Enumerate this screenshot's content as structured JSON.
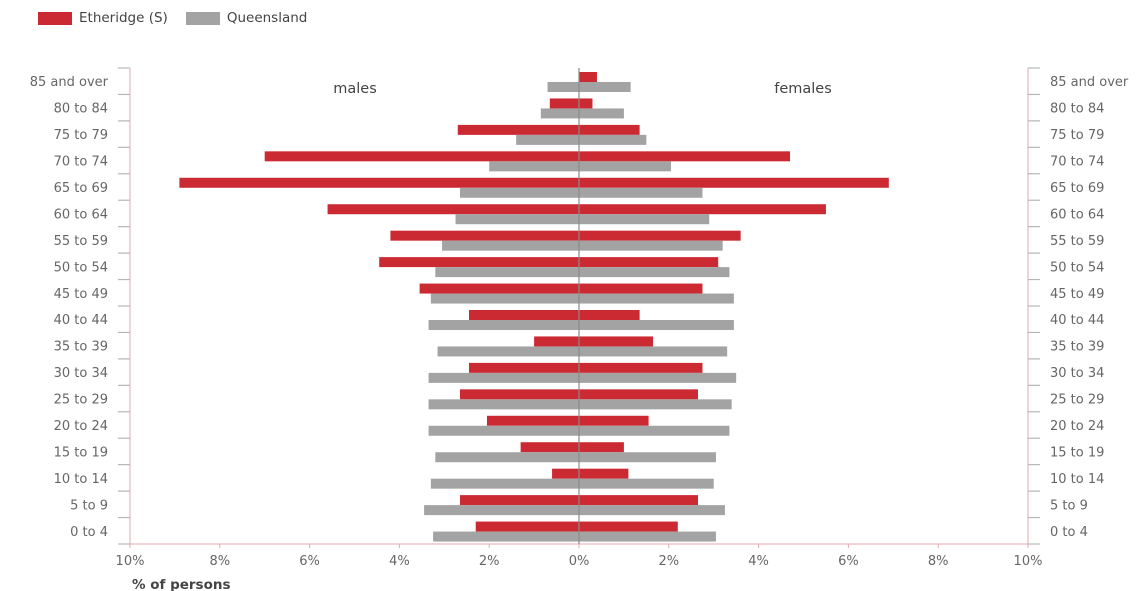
{
  "legend": {
    "local_label": "Etheridge (S)",
    "state_label": "Queensland"
  },
  "colors": {
    "local": "#cc2a33",
    "state": "#a3a3a3",
    "axis": "#e4a9b1",
    "center": "#8a8a8a",
    "tick_text": "#666666"
  },
  "chart_data": {
    "type": "bar",
    "orientation": "horizontal",
    "title": "",
    "xlabel": "% of persons",
    "left_label": "males",
    "right_label": "females",
    "xlim": [
      -10,
      10
    ],
    "xticks": [
      -10,
      -8,
      -6,
      -4,
      -2,
      0,
      2,
      4,
      6,
      8,
      10
    ],
    "xtick_labels": [
      "10%",
      "8%",
      "6%",
      "4%",
      "2%",
      "0%",
      "2%",
      "4%",
      "6%",
      "8%",
      "10%"
    ],
    "categories": [
      "85 and over",
      "80 to 84",
      "75 to 79",
      "70 to 74",
      "65 to 69",
      "60 to 64",
      "55 to 59",
      "50 to 54",
      "45 to 49",
      "40 to 44",
      "35 to 39",
      "30 to 34",
      "25 to 29",
      "20 to 24",
      "15 to 19",
      "10 to 14",
      "5 to 9",
      "0 to 4"
    ],
    "series": [
      {
        "name": "Etheridge (S)",
        "males": [
          0.0,
          0.65,
          2.7,
          7.0,
          8.9,
          5.6,
          4.2,
          4.45,
          3.55,
          2.45,
          1.0,
          2.45,
          2.65,
          2.05,
          1.3,
          0.6,
          2.65,
          2.3
        ],
        "females": [
          0.4,
          0.3,
          1.35,
          4.7,
          6.9,
          5.5,
          3.6,
          3.1,
          2.75,
          1.35,
          1.65,
          2.75,
          2.65,
          1.55,
          1.0,
          1.1,
          2.65,
          2.2
        ]
      },
      {
        "name": "Queensland",
        "males": [
          0.7,
          0.85,
          1.4,
          2.0,
          2.65,
          2.75,
          3.05,
          3.2,
          3.3,
          3.35,
          3.15,
          3.35,
          3.35,
          3.35,
          3.2,
          3.3,
          3.45,
          3.25
        ],
        "females": [
          1.15,
          1.0,
          1.5,
          2.05,
          2.75,
          2.9,
          3.2,
          3.35,
          3.45,
          3.45,
          3.3,
          3.5,
          3.4,
          3.35,
          3.05,
          3.0,
          3.25,
          3.05
        ]
      }
    ]
  }
}
